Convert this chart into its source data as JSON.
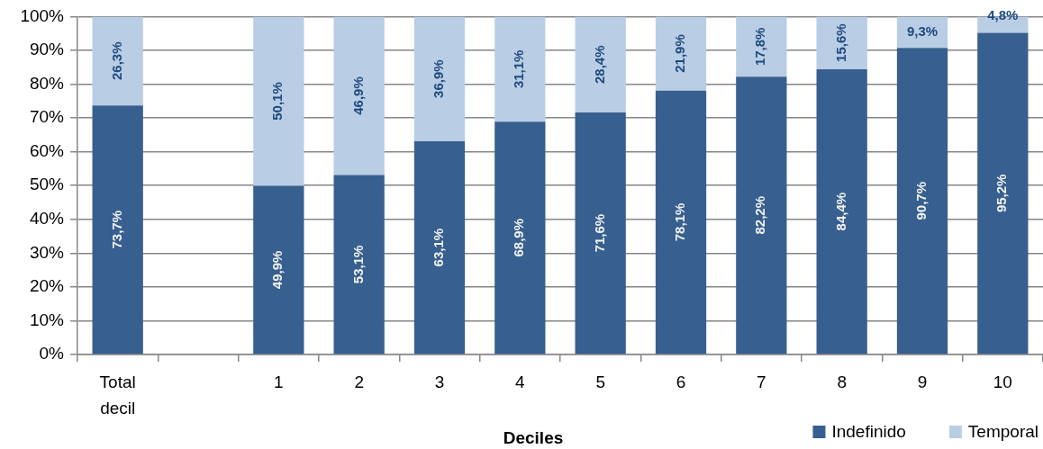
{
  "chart_data": {
    "type": "bar",
    "stacked": true,
    "xlabel": "Deciles",
    "categories": [
      "Total decil",
      null,
      "1",
      "2",
      "3",
      "4",
      "5",
      "6",
      "7",
      "8",
      "9",
      "10"
    ],
    "series": [
      {
        "name": "Indefinido",
        "color": "#375f8f",
        "values": [
          73.7,
          null,
          49.9,
          53.1,
          63.1,
          68.9,
          71.6,
          78.1,
          82.2,
          84.4,
          90.7,
          95.2
        ],
        "value_labels": [
          "73,7%",
          null,
          "49,9%",
          "53,1%",
          "63,1%",
          "68,9%",
          "71,6%",
          "78,1%",
          "82,2%",
          "84,4%",
          "90,7%",
          "95,2%"
        ]
      },
      {
        "name": "Temporal",
        "color": "#b9cde5",
        "values": [
          26.3,
          null,
          50.1,
          46.9,
          36.9,
          31.1,
          28.4,
          21.9,
          17.8,
          15.6,
          9.3,
          4.8
        ],
        "value_labels": [
          "26,3%",
          null,
          "50,1%",
          "46,9%",
          "36,9%",
          "31,1%",
          "28,4%",
          "21,9%",
          "17,8%",
          "15,6%",
          "9,3%",
          "4,8%"
        ]
      }
    ],
    "ylim": [
      0,
      100
    ],
    "yticks": [
      {
        "value": 0,
        "label": "0%"
      },
      {
        "value": 10,
        "label": "10%"
      },
      {
        "value": 20,
        "label": "20%"
      },
      {
        "value": 30,
        "label": "30%"
      },
      {
        "value": 40,
        "label": "40%"
      },
      {
        "value": 50,
        "label": "50%"
      },
      {
        "value": 60,
        "label": "60%"
      },
      {
        "value": 70,
        "label": "70%"
      },
      {
        "value": 80,
        "label": "80%"
      },
      {
        "value": 90,
        "label": "90%"
      },
      {
        "value": 100,
        "label": "100%"
      }
    ],
    "grid": "y",
    "legend": "bottom right"
  }
}
